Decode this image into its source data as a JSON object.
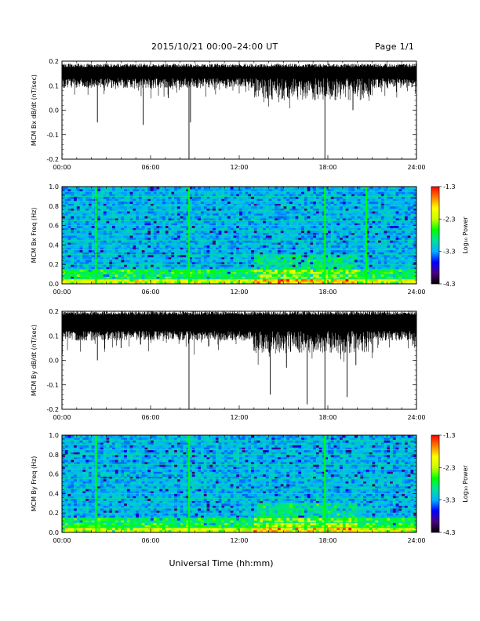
{
  "header": {
    "title": "2015/10/21   00:00–24:00 UT",
    "page": "Page 1/1"
  },
  "footer": {
    "xlabel": "Universal Time (hh:mm)"
  },
  "colors": {
    "trace": "#000000",
    "spectrogram_background": "#1a3fd0",
    "colormap": [
      "#000000",
      "#4b0082",
      "#0000ff",
      "#00b0ff",
      "#00e0a0",
      "#00ff00",
      "#c8ff00",
      "#ffff00",
      "#ff8000",
      "#ff0000"
    ]
  },
  "chart_data": [
    {
      "type": "line",
      "panel": "bx-dbdt",
      "ylabel": "MCM Bx dB/dt (nT/sec)",
      "xlim": [
        0,
        24
      ],
      "ylim": [
        -0.2,
        0.2
      ],
      "xticks": [
        "00:00",
        "06:00",
        "12:00",
        "18:00",
        "24:00"
      ],
      "yticks": [
        "0.2",
        "0.1",
        "0.0",
        "-0.1",
        "-0.2"
      ],
      "baseline_band": [
        0.13,
        0.19
      ],
      "spikes": [
        {
          "x": 2.4,
          "y": -0.05
        },
        {
          "x": 5.5,
          "y": -0.06
        },
        {
          "x": 7.2,
          "y": 0.05
        },
        {
          "x": 8.6,
          "y": -0.2
        },
        {
          "x": 8.7,
          "y": -0.05
        },
        {
          "x": 14.2,
          "y": 0.08
        },
        {
          "x": 15.0,
          "y": 0.08
        },
        {
          "x": 16.5,
          "y": 0.07
        },
        {
          "x": 17.8,
          "y": -0.2
        },
        {
          "x": 19.7,
          "y": 0.0
        }
      ]
    },
    {
      "type": "heatmap",
      "panel": "bx-spectrogram",
      "ylabel": "MCM Bx Freq (Hz)",
      "xlim": [
        0,
        24
      ],
      "ylim": [
        0,
        1.0
      ],
      "xticks": [
        "00:00",
        "06:00",
        "12:00",
        "18:00",
        "24:00"
      ],
      "yticks": [
        "1.0",
        "0.8",
        "0.6",
        "0.4",
        "0.2",
        "0.0"
      ],
      "colorbar_label": "Log₁₀ Power",
      "colorbar_ticks": [
        "-1.3",
        "-2.3",
        "-3.3",
        "-4.3"
      ],
      "zlim": [
        -4.3,
        -1.3
      ],
      "vertical_events_hours": [
        2.3,
        8.6,
        17.8,
        20.6
      ],
      "harmonic_lines_hz": [
        0.05,
        0.1,
        0.15,
        0.2,
        0.25,
        0.3,
        0.35,
        0.4,
        0.45,
        0.5,
        0.55,
        0.6,
        0.65,
        0.7,
        0.75,
        0.8,
        0.85,
        0.9,
        0.95,
        1.0
      ]
    },
    {
      "type": "line",
      "panel": "by-dbdt",
      "ylabel": "MCM By dB/dt (nT/sec)",
      "xlim": [
        0,
        24
      ],
      "ylim": [
        -0.2,
        0.2
      ],
      "xticks": [
        "00:00",
        "06:00",
        "12:00",
        "18:00",
        "24:00"
      ],
      "yticks": [
        "0.2",
        "0.1",
        "0.0",
        "-0.1",
        "-0.2"
      ],
      "baseline_band": [
        0.12,
        0.2
      ],
      "spikes": [
        {
          "x": 2.4,
          "y": 0.0
        },
        {
          "x": 4.0,
          "y": 0.05
        },
        {
          "x": 8.6,
          "y": -0.2
        },
        {
          "x": 13.0,
          "y": 0.04
        },
        {
          "x": 14.1,
          "y": -0.14
        },
        {
          "x": 15.2,
          "y": -0.03
        },
        {
          "x": 16.6,
          "y": -0.18
        },
        {
          "x": 17.8,
          "y": -0.2
        },
        {
          "x": 19.3,
          "y": -0.15
        },
        {
          "x": 19.9,
          "y": -0.02
        }
      ]
    },
    {
      "type": "heatmap",
      "panel": "by-spectrogram",
      "ylabel": "MCM By Freq (Hz)",
      "xlim": [
        0,
        24
      ],
      "ylim": [
        0,
        1.0
      ],
      "xticks": [
        "00:00",
        "06:00",
        "12:00",
        "18:00",
        "24:00"
      ],
      "yticks": [
        "1.0",
        "0.8",
        "0.6",
        "0.4",
        "0.2",
        "0.0"
      ],
      "colorbar_label": "Log₁₀ Power",
      "colorbar_ticks": [
        "-1.3",
        "-2.3",
        "-3.3",
        "-4.3"
      ],
      "zlim": [
        -4.3,
        -1.3
      ],
      "vertical_events_hours": [
        2.3,
        8.6,
        17.8
      ],
      "harmonic_lines_hz": [
        0.05,
        0.1,
        0.15,
        0.2,
        0.25,
        0.3,
        0.35,
        0.4,
        0.45,
        0.5,
        0.55,
        0.6,
        0.65,
        0.7,
        0.75,
        0.8,
        0.85,
        0.9,
        0.95,
        1.0
      ]
    }
  ]
}
